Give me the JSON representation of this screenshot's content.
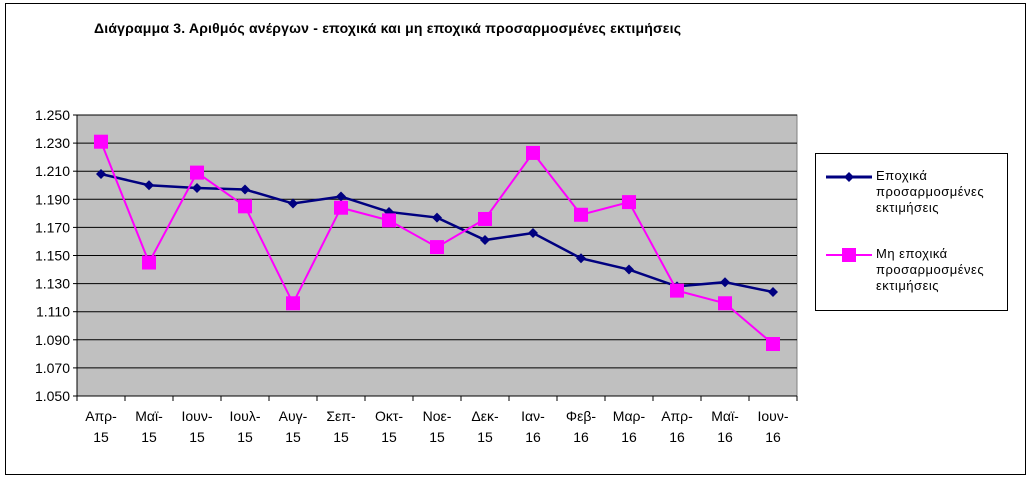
{
  "chart_data": {
    "type": "line",
    "title": "Διάγραμμα 3. Αριθμός ανέργων - εποχικά και μη εποχικά προσαρμοσμένες εκτιμήσεις",
    "categories": [
      [
        "Απρ-",
        "15"
      ],
      [
        "Μαϊ-",
        "15"
      ],
      [
        "Ιουν-",
        "15"
      ],
      [
        "Ιουλ-",
        "15"
      ],
      [
        "Αυγ-",
        "15"
      ],
      [
        "Σεπ-",
        "15"
      ],
      [
        "Οκτ-",
        "15"
      ],
      [
        "Νοε-",
        "15"
      ],
      [
        "Δεκ-",
        "15"
      ],
      [
        "Ιαν-",
        "16"
      ],
      [
        "Φεβ-",
        "16"
      ],
      [
        "Μαρ-",
        "16"
      ],
      [
        "Απρ-",
        "16"
      ],
      [
        "Μαϊ-",
        "16"
      ],
      [
        "Ιουν-",
        "16"
      ]
    ],
    "yticks": [
      "1.050",
      "1.070",
      "1.090",
      "1.110",
      "1.130",
      "1.150",
      "1.170",
      "1.190",
      "1.210",
      "1.230",
      "1.250"
    ],
    "ylim": [
      1050,
      1250
    ],
    "ystep": 20,
    "grid": true,
    "legend_position": "right",
    "series": [
      {
        "name": "Εποχικά προσαρμοσμένες εκτιμήσεις",
        "color": "#000080",
        "marker": "diamond",
        "values": [
          1208,
          1200,
          1198,
          1197,
          1187,
          1192,
          1181,
          1177,
          1161,
          1166,
          1148,
          1140,
          1128,
          1131,
          1124
        ]
      },
      {
        "name": "Μη εποχικά προσαρμοσμένες εκτιμήσεις",
        "color": "#FF00FF",
        "marker": "square",
        "values": [
          1231,
          1145,
          1209,
          1185,
          1116,
          1184,
          1175,
          1156,
          1176,
          1223,
          1179,
          1188,
          1125,
          1116,
          1087
        ]
      }
    ],
    "colors": {
      "plot_bg": "#C0C0C0",
      "grid": "#000000"
    }
  },
  "legend": {
    "items": [
      {
        "lines": [
          "Εποχικά",
          "προσαρμοσμένες",
          "εκτιμήσεις"
        ]
      },
      {
        "lines": [
          "Μη εποχικά",
          "προσαρμοσμένες",
          "εκτιμήσεις"
        ]
      }
    ]
  }
}
